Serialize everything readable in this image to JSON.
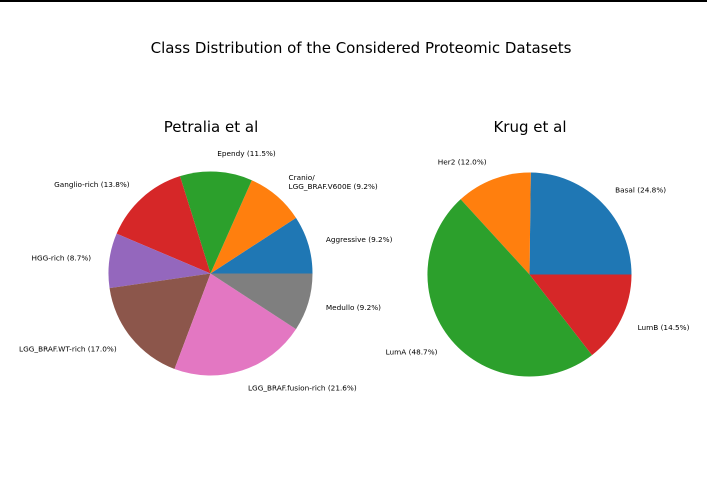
{
  "figure_title": "Class Distribution of the Considered Proteomic Datasets",
  "chart_data": [
    {
      "type": "pie",
      "title": "Petralia et al",
      "startangle_deg": 0,
      "direction": "counterclockwise",
      "slices": [
        {
          "label": "Aggressive (9.2%)",
          "value": 9.2,
          "color": "#1f77b4"
        },
        {
          "label": "Cranio/\nLGG_BRAF.V600E (9.2%)",
          "value": 9.2,
          "color": "#ff7f0e"
        },
        {
          "label": "Ependy (11.5%)",
          "value": 11.5,
          "color": "#2ca02c"
        },
        {
          "label": "Ganglio-rich (13.8%)",
          "value": 13.8,
          "color": "#d62728"
        },
        {
          "label": "HGG-rich (8.7%)",
          "value": 8.7,
          "color": "#9467bd"
        },
        {
          "label": "LGG_BRAF.WT-rich (17.0%)",
          "value": 17.0,
          "color": "#8c564b"
        },
        {
          "label": "LGG_BRAF.fusion-rich (21.6%)",
          "value": 21.6,
          "color": "#e377c2"
        },
        {
          "label": "Medullo (9.2%)",
          "value": 9.2,
          "color": "#7f7f7f"
        }
      ]
    },
    {
      "type": "pie",
      "title": "Krug et al",
      "startangle_deg": 0,
      "direction": "counterclockwise",
      "slices": [
        {
          "label": "Basal (24.8%)",
          "value": 24.8,
          "color": "#1f77b4"
        },
        {
          "label": "Her2 (12.0%)",
          "value": 12.0,
          "color": "#ff7f0e"
        },
        {
          "label": "LumA (48.7%)",
          "value": 48.7,
          "color": "#2ca02c"
        },
        {
          "label": "LumB (14.5%)",
          "value": 14.5,
          "color": "#d62728"
        }
      ]
    }
  ]
}
